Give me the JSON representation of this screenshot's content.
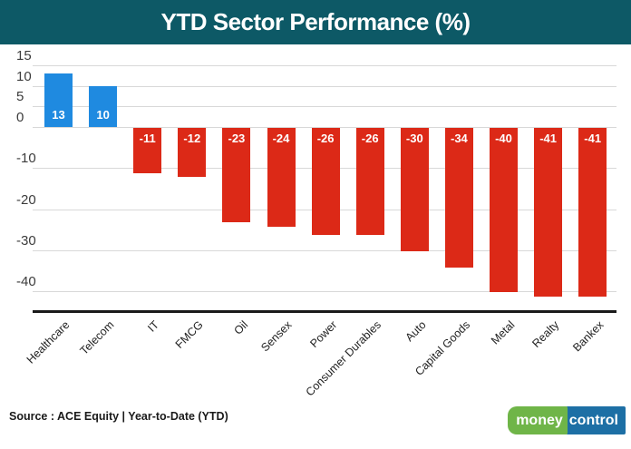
{
  "header": {
    "title": "YTD Sector Performance (%)"
  },
  "chart_data": {
    "type": "bar",
    "title": "YTD Sector Performance (%)",
    "categories": [
      "Healthcare",
      "Telecom",
      "IT",
      "FMCG",
      "Oil",
      "Sensex",
      "Power",
      "Consumer Durables",
      "Auto",
      "Capital Goods",
      "Metal",
      "Realty",
      "Bankex"
    ],
    "values": [
      13,
      10,
      -11,
      -12,
      -23,
      -24,
      -26,
      -26,
      -30,
      -34,
      -40,
      -41,
      -41
    ],
    "bar_labels": [
      "13",
      "10",
      "-11",
      "-12",
      "-23",
      "-24",
      "-26",
      "-26",
      "-30",
      "-34",
      "-40",
      "-41",
      "-41"
    ],
    "y_ticks": [
      15,
      10,
      5,
      0,
      -10,
      -20,
      -30,
      -40
    ],
    "ylim": [
      -45,
      15
    ],
    "xlabel": "",
    "ylabel": "",
    "grid": true,
    "legend": "none",
    "positive_color": "#1f8ae0",
    "negative_color": "#dc2917"
  },
  "footer": {
    "source": "Source : ACE Equity | Year-to-Date (YTD)",
    "logo": {
      "money": "money",
      "control": "control"
    }
  }
}
